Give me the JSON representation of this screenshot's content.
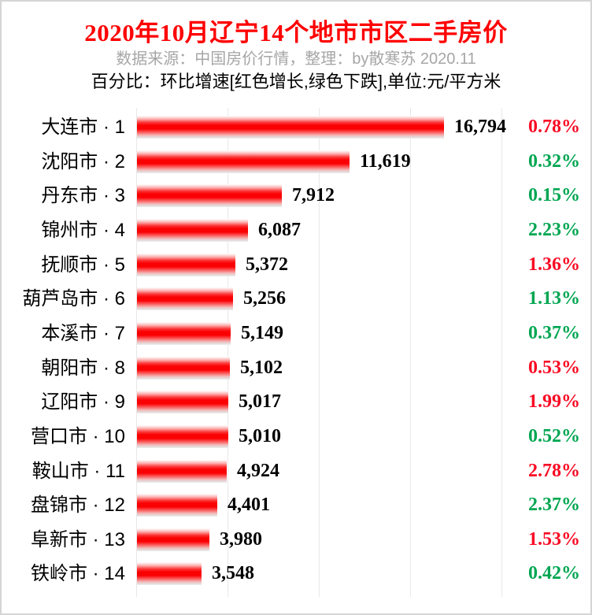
{
  "header": {
    "title": "2020年10月辽宁14个地市市区二手房价",
    "subtitle": "数据来源：中国房价行情，整理：by散寒苏 2020.11",
    "note": "百分比：环比增速[红色增长,绿色下跌],单位:元/平方米"
  },
  "colors": {
    "title_red": "#ff0000",
    "subtitle_gray": "#a6a6a6",
    "bar_red": "#fa0103",
    "pct_up_red": "#fa0a23",
    "pct_down_green": "#00a651",
    "gridline_gray": "#e8e8e8",
    "page_border_gray": "#d5d5d5"
  },
  "chart_data": {
    "type": "bar",
    "orientation": "horizontal",
    "title": "2020年10月辽宁14个地市市区二手房价",
    "unit": "元/平方米",
    "axis_max": 20000,
    "gridline_values": [
      0,
      5000,
      10000,
      15000,
      20000
    ],
    "legend_note": "红色增长, 绿色下跌 (环比增速)",
    "categories": [
      "大连市 · 1",
      "沈阳市 · 2",
      "丹东市 · 3",
      "锦州市 · 4",
      "抚顺市 · 5",
      "葫芦岛市 · 6",
      "本溪市 · 7",
      "朝阳市 · 8",
      "辽阳市 · 9",
      "营口市 · 10",
      "鞍山市 · 11",
      "盘锦市 · 12",
      "阜新市 · 13",
      "铁岭市 · 14"
    ],
    "values": [
      16794,
      11619,
      7912,
      6087,
      5372,
      5256,
      5149,
      5102,
      5017,
      5010,
      4924,
      4401,
      3980,
      3548
    ],
    "value_labels": [
      "16,794",
      "11,619",
      "7,912",
      "6,087",
      "5,372",
      "5,256",
      "5,149",
      "5,102",
      "5,017",
      "5,010",
      "4,924",
      "4,401",
      "3,980",
      "3,548"
    ],
    "pct_change": [
      "0.78%",
      "0.32%",
      "0.15%",
      "2.23%",
      "1.36%",
      "1.13%",
      "0.37%",
      "0.53%",
      "1.99%",
      "0.52%",
      "2.78%",
      "2.37%",
      "1.53%",
      "0.42%"
    ],
    "pct_direction": [
      "up",
      "down",
      "down",
      "down",
      "up",
      "down",
      "down",
      "up",
      "up",
      "down",
      "up",
      "down",
      "up",
      "down"
    ]
  }
}
